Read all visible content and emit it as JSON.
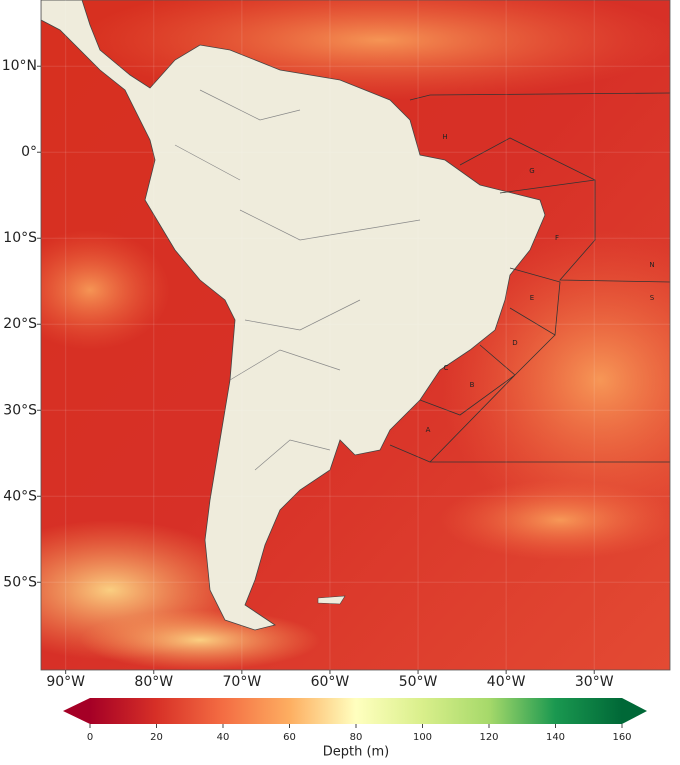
{
  "map": {
    "xlim": [
      -92.8,
      -21.4
    ],
    "ylim": [
      -60.2,
      17.7
    ],
    "xticks": [
      {
        "value": -90,
        "label": "90°W"
      },
      {
        "value": -80,
        "label": "80°W"
      },
      {
        "value": -70,
        "label": "70°W"
      },
      {
        "value": -60,
        "label": "60°W"
      },
      {
        "value": -50,
        "label": "50°W"
      },
      {
        "value": -40,
        "label": "40°W"
      },
      {
        "value": -30,
        "label": "30°W"
      }
    ],
    "yticks": [
      {
        "value": 10,
        "label": "10°N"
      },
      {
        "value": 0,
        "label": "0°"
      },
      {
        "value": -10,
        "label": "10°S"
      },
      {
        "value": -20,
        "label": "20°S"
      },
      {
        "value": -30,
        "label": "30°S"
      },
      {
        "value": -40,
        "label": "40°S"
      },
      {
        "value": -50,
        "label": "50°S"
      }
    ],
    "regions": [
      "H",
      "G",
      "F",
      "N",
      "S",
      "E",
      "D",
      "C",
      "B",
      "A"
    ]
  },
  "colorbar": {
    "label": "Depth (m)",
    "range": [
      0,
      160
    ],
    "ticks": [
      0,
      20,
      40,
      60,
      80,
      100,
      120,
      140,
      160
    ]
  }
}
